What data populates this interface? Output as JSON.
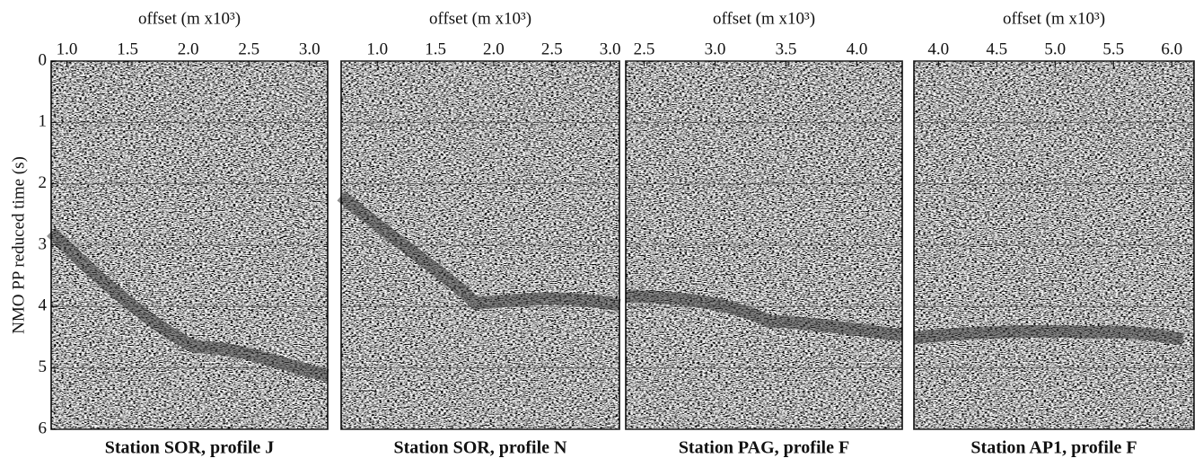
{
  "ylabel": "NMO PP reduced time (s)",
  "ylim": [
    0,
    6
  ],
  "yticks": [
    0,
    1,
    2,
    3,
    4,
    5,
    6
  ],
  "grid": true,
  "panels": [
    {
      "xlabel": "offset (m x10³)",
      "xlim": [
        0.87,
        3.15
      ],
      "xticks": [
        {
          "value": 1,
          "label": "1.0"
        },
        1.5,
        {
          "value": 2,
          "label": "2.0"
        },
        2.5,
        {
          "value": 3,
          "label": "3.0"
        }
      ],
      "caption": "Station SOR, profile J"
    },
    {
      "xlabel": "offset (m x10³)",
      "xlim": [
        0.69,
        3.08
      ],
      "xticks": [
        {
          "value": 1,
          "label": "1.0"
        },
        1.5,
        {
          "value": 2,
          "label": "2.0"
        },
        2.5,
        {
          "value": 3,
          "label": "3.0"
        }
      ],
      "caption": "Station SOR, profile N"
    },
    {
      "xlabel": "offset (m x10³)",
      "xlim": [
        2.37,
        4.32
      ],
      "xticks": [
        2.5,
        {
          "value": 3,
          "label": "3.0"
        },
        3.5,
        {
          "value": 4,
          "label": "4.0"
        }
      ],
      "caption": "Station PAG, profile F"
    },
    {
      "xlabel": "offset (m x10³)",
      "xlim": [
        3.79,
        6.19
      ],
      "xticks": [
        {
          "value": 4,
          "label": "4.0"
        },
        4.5,
        {
          "value": 5,
          "label": "5.0"
        },
        5.5,
        {
          "value": 6,
          "label": "6.0"
        }
      ],
      "caption": "Station AP1, profile F"
    }
  ]
}
